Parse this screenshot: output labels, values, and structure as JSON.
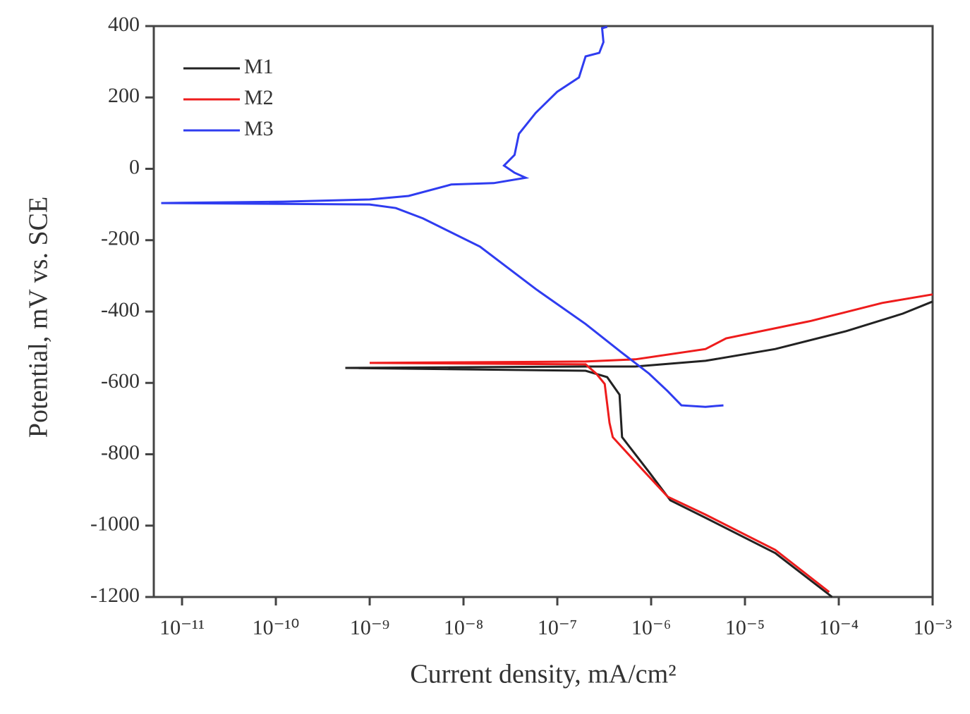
{
  "chart_data": {
    "type": "line",
    "x_label": "Current density, mA/cm²",
    "y_label": "Potential, mV vs. SCE",
    "xscale": "log",
    "xlim": [
      5e-12,
      0.001
    ],
    "ylim": [
      -1200,
      400
    ],
    "xticks": [
      {
        "value": 1e-11,
        "label": "10⁻¹¹"
      },
      {
        "value": 1e-10,
        "label": "10⁻¹⁰"
      },
      {
        "value": 1e-09,
        "label": "10⁻⁹"
      },
      {
        "value": 1e-08,
        "label": "10⁻⁸"
      },
      {
        "value": 1e-07,
        "label": "10⁻⁷"
      },
      {
        "value": 1e-06,
        "label": "10⁻⁶"
      },
      {
        "value": 1e-05,
        "label": "10⁻⁵"
      },
      {
        "value": 0.0001,
        "label": "10⁻⁴"
      },
      {
        "value": 0.001,
        "label": "10⁻³"
      }
    ],
    "yticks": [
      400,
      200,
      0,
      -200,
      -400,
      -600,
      -800,
      -1000,
      -1200
    ],
    "legend": "upper left",
    "series": [
      {
        "name": "M1",
        "color": "#222222",
        "x": [
          8.5e-05,
          2.1e-05,
          3.8e-06,
          1.6e-06,
          9.5e-07,
          4.9e-07,
          4.8e-07,
          4.6e-07,
          3.4e-07,
          2e-07,
          5.5e-10,
          2e-07,
          6.8e-07,
          3.8e-06,
          2.1e-05,
          0.00012,
          0.00048,
          0.001
        ],
        "values": [
          -1200,
          -1077,
          -978,
          -929,
          -850,
          -752,
          -712,
          -633,
          -584,
          -566,
          -558,
          -554,
          -554,
          -538,
          -505,
          -455,
          -406,
          -372
        ]
      },
      {
        "name": "M2",
        "color": "#ee1c1c",
        "x": [
          7.9e-05,
          2.1e-05,
          3.8e-06,
          1.5e-06,
          7.9e-07,
          3.9e-07,
          3.6e-07,
          3.2e-07,
          2.6e-07,
          2e-07,
          1e-09,
          2e-07,
          6.8e-07,
          3.8e-06,
          6.3e-06,
          5.1e-05,
          0.00029,
          0.001
        ],
        "values": [
          -1186,
          -1068,
          -969,
          -919,
          -840,
          -752,
          -712,
          -603,
          -574,
          -548,
          -544,
          -540,
          -534,
          -505,
          -475,
          -426,
          -376,
          -352
        ]
      },
      {
        "name": "M3",
        "color": "#2f3cf0",
        "x": [
          3.4e-07,
          3e-07,
          3.1e-07,
          2.8e-07,
          2e-07,
          1.7e-07,
          1e-07,
          5.9e-08,
          3.9e-08,
          3.5e-08,
          2.7e-08,
          3.5e-08,
          4.6e-08,
          2.1e-08,
          7.4e-09,
          2.6e-09,
          1e-09,
          1.2e-10,
          6e-12,
          1e-09,
          1.9e-09,
          3.7e-09,
          1.5e-08,
          5.9e-08,
          2e-07,
          4.8e-07,
          9.5e-07,
          1.5e-06,
          2.1e-06,
          3.8e-06,
          5.9e-06
        ],
        "values": [
          398,
          394,
          355,
          325,
          315,
          256,
          216,
          157,
          98,
          39,
          9,
          -11,
          -25,
          -40,
          -44,
          -76,
          -86,
          -92,
          -96,
          -100,
          -110,
          -139,
          -218,
          -337,
          -435,
          -514,
          -574,
          -623,
          -663,
          -667,
          -663
        ]
      }
    ]
  }
}
